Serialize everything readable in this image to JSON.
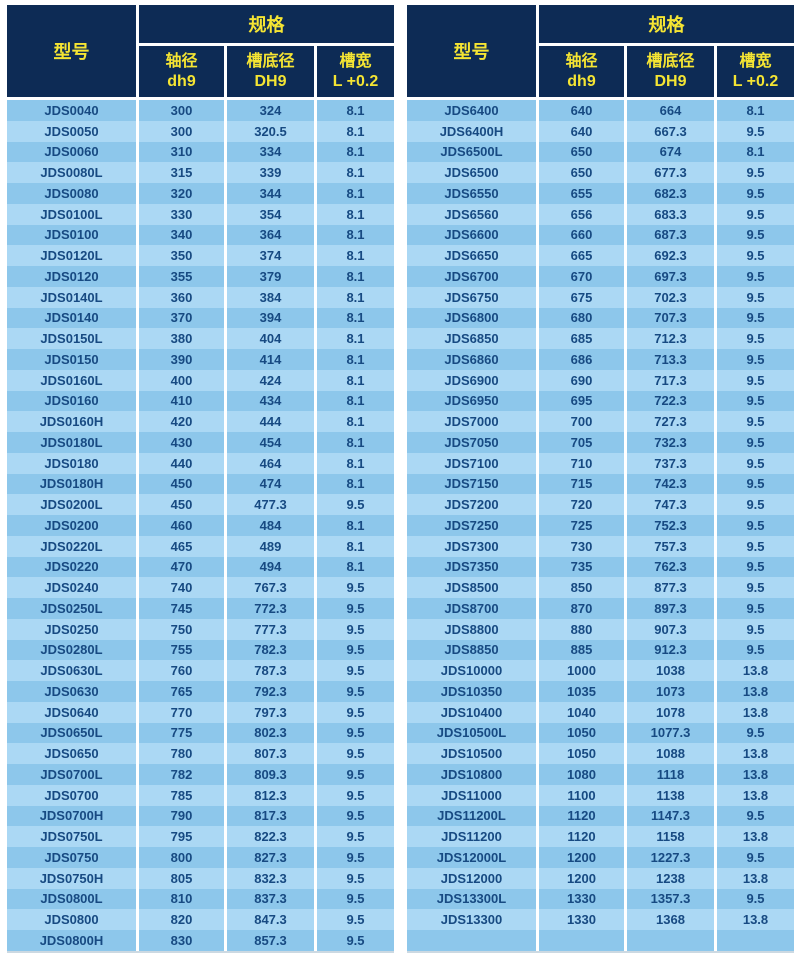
{
  "colors": {
    "header_bg": "#0d2b55",
    "header_text": "#f5e533",
    "row_dark": "#8dc7eb",
    "row_light": "#abd8f4",
    "body_text": "#174a82",
    "page_bg": "#ffffff"
  },
  "header": {
    "model": "型号",
    "spec": "规格",
    "columns": [
      {
        "line1": "轴径",
        "line2": "dh9"
      },
      {
        "line1": "槽底径",
        "line2": "DH9"
      },
      {
        "line1": "槽宽",
        "line2": "L +0.2"
      }
    ]
  },
  "tables": [
    {
      "rows": [
        [
          "JDS0040",
          "300",
          "324",
          "8.1"
        ],
        [
          "JDS0050",
          "300",
          "320.5",
          "8.1"
        ],
        [
          "JDS0060",
          "310",
          "334",
          "8.1"
        ],
        [
          "JDS0080L",
          "315",
          "339",
          "8.1"
        ],
        [
          "JDS0080",
          "320",
          "344",
          "8.1"
        ],
        [
          "JDS0100L",
          "330",
          "354",
          "8.1"
        ],
        [
          "JDS0100",
          "340",
          "364",
          "8.1"
        ],
        [
          "JDS0120L",
          "350",
          "374",
          "8.1"
        ],
        [
          "JDS0120",
          "355",
          "379",
          "8.1"
        ],
        [
          "JDS0140L",
          "360",
          "384",
          "8.1"
        ],
        [
          "JDS0140",
          "370",
          "394",
          "8.1"
        ],
        [
          "JDS0150L",
          "380",
          "404",
          "8.1"
        ],
        [
          "JDS0150",
          "390",
          "414",
          "8.1"
        ],
        [
          "JDS0160L",
          "400",
          "424",
          "8.1"
        ],
        [
          "JDS0160",
          "410",
          "434",
          "8.1"
        ],
        [
          "JDS0160H",
          "420",
          "444",
          "8.1"
        ],
        [
          "JDS0180L",
          "430",
          "454",
          "8.1"
        ],
        [
          "JDS0180",
          "440",
          "464",
          "8.1"
        ],
        [
          "JDS0180H",
          "450",
          "474",
          "8.1"
        ],
        [
          "JDS0200L",
          "450",
          "477.3",
          "9.5"
        ],
        [
          "JDS0200",
          "460",
          "484",
          "8.1"
        ],
        [
          "JDS0220L",
          "465",
          "489",
          "8.1"
        ],
        [
          "JDS0220",
          "470",
          "494",
          "8.1"
        ],
        [
          "JDS0240",
          "740",
          "767.3",
          "9.5"
        ],
        [
          "JDS0250L",
          "745",
          "772.3",
          "9.5"
        ],
        [
          "JDS0250",
          "750",
          "777.3",
          "9.5"
        ],
        [
          "JDS0280L",
          "755",
          "782.3",
          "9.5"
        ],
        [
          "JDS0630L",
          "760",
          "787.3",
          "9.5"
        ],
        [
          "JDS0630",
          "765",
          "792.3",
          "9.5"
        ],
        [
          "JDS0640",
          "770",
          "797.3",
          "9.5"
        ],
        [
          "JDS0650L",
          "775",
          "802.3",
          "9.5"
        ],
        [
          "JDS0650",
          "780",
          "807.3",
          "9.5"
        ],
        [
          "JDS0700L",
          "782",
          "809.3",
          "9.5"
        ],
        [
          "JDS0700",
          "785",
          "812.3",
          "9.5"
        ],
        [
          "JDS0700H",
          "790",
          "817.3",
          "9.5"
        ],
        [
          "JDS0750L",
          "795",
          "822.3",
          "9.5"
        ],
        [
          "JDS0750",
          "800",
          "827.3",
          "9.5"
        ],
        [
          "JDS0750H",
          "805",
          "832.3",
          "9.5"
        ],
        [
          "JDS0800L",
          "810",
          "837.3",
          "9.5"
        ],
        [
          "JDS0800",
          "820",
          "847.3",
          "9.5"
        ],
        [
          "JDS0800H",
          "830",
          "857.3",
          "9.5"
        ]
      ]
    },
    {
      "rows": [
        [
          "JDS6400",
          "640",
          "664",
          "8.1"
        ],
        [
          "JDS6400H",
          "640",
          "667.3",
          "9.5"
        ],
        [
          "JDS6500L",
          "650",
          "674",
          "8.1"
        ],
        [
          "JDS6500",
          "650",
          "677.3",
          "9.5"
        ],
        [
          "JDS6550",
          "655",
          "682.3",
          "9.5"
        ],
        [
          "JDS6560",
          "656",
          "683.3",
          "9.5"
        ],
        [
          "JDS6600",
          "660",
          "687.3",
          "9.5"
        ],
        [
          "JDS6650",
          "665",
          "692.3",
          "9.5"
        ],
        [
          "JDS6700",
          "670",
          "697.3",
          "9.5"
        ],
        [
          "JDS6750",
          "675",
          "702.3",
          "9.5"
        ],
        [
          "JDS6800",
          "680",
          "707.3",
          "9.5"
        ],
        [
          "JDS6850",
          "685",
          "712.3",
          "9.5"
        ],
        [
          "JDS6860",
          "686",
          "713.3",
          "9.5"
        ],
        [
          "JDS6900",
          "690",
          "717.3",
          "9.5"
        ],
        [
          "JDS6950",
          "695",
          "722.3",
          "9.5"
        ],
        [
          "JDS7000",
          "700",
          "727.3",
          "9.5"
        ],
        [
          "JDS7050",
          "705",
          "732.3",
          "9.5"
        ],
        [
          "JDS7100",
          "710",
          "737.3",
          "9.5"
        ],
        [
          "JDS7150",
          "715",
          "742.3",
          "9.5"
        ],
        [
          "JDS7200",
          "720",
          "747.3",
          "9.5"
        ],
        [
          "JDS7250",
          "725",
          "752.3",
          "9.5"
        ],
        [
          "JDS7300",
          "730",
          "757.3",
          "9.5"
        ],
        [
          "JDS7350",
          "735",
          "762.3",
          "9.5"
        ],
        [
          "JDS8500",
          "850",
          "877.3",
          "9.5"
        ],
        [
          "JDS8700",
          "870",
          "897.3",
          "9.5"
        ],
        [
          "JDS8800",
          "880",
          "907.3",
          "9.5"
        ],
        [
          "JDS8850",
          "885",
          "912.3",
          "9.5"
        ],
        [
          "JDS10000",
          "1000",
          "1038",
          "13.8"
        ],
        [
          "JDS10350",
          "1035",
          "1073",
          "13.8"
        ],
        [
          "JDS10400",
          "1040",
          "1078",
          "13.8"
        ],
        [
          "JDS10500L",
          "1050",
          "1077.3",
          "9.5"
        ],
        [
          "JDS10500",
          "1050",
          "1088",
          "13.8"
        ],
        [
          "JDS10800",
          "1080",
          "1118",
          "13.8"
        ],
        [
          "JDS11000",
          "1100",
          "1138",
          "13.8"
        ],
        [
          "JDS11200L",
          "1120",
          "1147.3",
          "9.5"
        ],
        [
          "JDS11200",
          "1120",
          "1158",
          "13.8"
        ],
        [
          "JDS12000L",
          "1200",
          "1227.3",
          "9.5"
        ],
        [
          "JDS12000",
          "1200",
          "1238",
          "13.8"
        ],
        [
          "JDS13300L",
          "1330",
          "1357.3",
          "9.5"
        ],
        [
          "JDS13300",
          "1330",
          "1368",
          "13.8"
        ],
        [
          "",
          "",
          "",
          ""
        ]
      ]
    }
  ]
}
